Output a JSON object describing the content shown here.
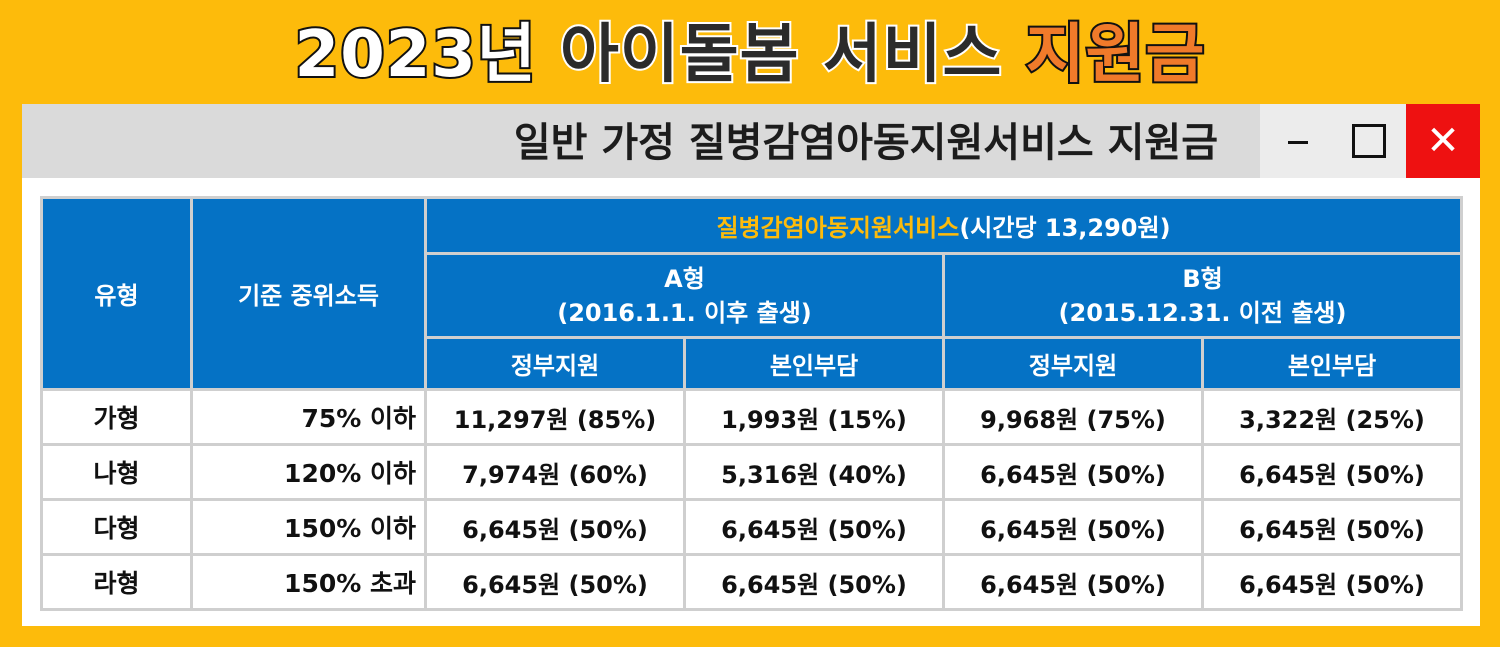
{
  "header": {
    "year": "2023년",
    "title_mid": "아이돌봄 서비스",
    "title_end": "지원금"
  },
  "window": {
    "title": "일반 가정 질병감염아동지원서비스 지원금",
    "controls": {
      "minimize_icon": "minimize-icon",
      "maximize_icon": "maximize-icon",
      "close_icon": "close-icon",
      "close_glyph": "✕"
    }
  },
  "table": {
    "col_type": "유형",
    "col_income": "기준 중위소득",
    "service_name": "질병감염아동지원서비스",
    "service_rate": "(시간당 13,290원)",
    "group_a_title": "A형",
    "group_a_sub": "(2016.1.1. 이후 출생)",
    "group_b_title": "B형",
    "group_b_sub": "(2015.12.31. 이전 출생)",
    "gov_support": "정부지원",
    "self_pay": "본인부담",
    "rows": [
      {
        "type": "가형",
        "income": "75% 이하",
        "a_gov": "11,297원 (85%)",
        "a_self": "1,993원 (15%)",
        "b_gov": "9,968원 (75%)",
        "b_self": "3,322원 (25%)"
      },
      {
        "type": "나형",
        "income": "120% 이하",
        "a_gov": "7,974원 (60%)",
        "a_self": "5,316원 (40%)",
        "b_gov": "6,645원 (50%)",
        "b_self": "6,645원 (50%)"
      },
      {
        "type": "다형",
        "income": "150% 이하",
        "a_gov": "6,645원 (50%)",
        "a_self": "6,645원 (50%)",
        "b_gov": "6,645원 (50%)",
        "b_self": "6,645원 (50%)"
      },
      {
        "type": "라형",
        "income": "150% 초과",
        "a_gov": "6,645원 (50%)",
        "a_self": "6,645원 (50%)",
        "b_gov": "6,645원 (50%)",
        "b_self": "6,645원 (50%)"
      }
    ]
  },
  "colors": {
    "background": "#FDBB0B",
    "header_blue": "#0572C5",
    "accent_orange": "#F07A2A",
    "close_red": "#EE1111"
  }
}
